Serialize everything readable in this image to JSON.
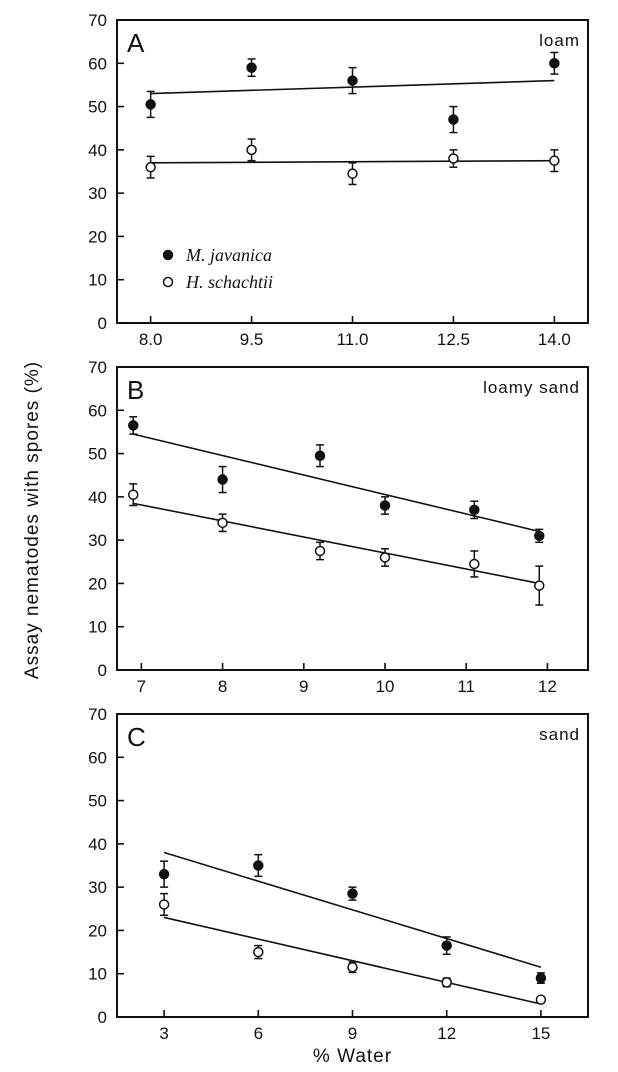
{
  "chart_data": {
    "type": "scatter",
    "ylabel": "Assay nematodes with spores (%)",
    "xlabel": "% Water",
    "legend": {
      "placement": "bottom-left of panel A",
      "entries": [
        {
          "name": "M. javanica",
          "marker": "filled-circle"
        },
        {
          "name": "H. schachtii",
          "marker": "open-circle"
        }
      ]
    },
    "panels": [
      {
        "letter": "A",
        "soil": "loam",
        "xlim": [
          7.5,
          14.5
        ],
        "ylim": [
          0,
          70
        ],
        "xticks": [
          8.0,
          9.5,
          11.0,
          12.5,
          14.0
        ],
        "xtick_labels": [
          "8.0",
          "9.5",
          "11.0",
          "12.5",
          "14.0"
        ],
        "yticks": [
          0,
          10,
          20,
          30,
          40,
          50,
          60,
          70
        ],
        "series": [
          {
            "name": "M. javanica",
            "filled": true,
            "x": [
              8.0,
              9.5,
              11.0,
              12.5,
              14.0
            ],
            "y": [
              50.5,
              59,
              56,
              47,
              60
            ],
            "err": [
              3,
              2,
              3,
              3,
              2.5
            ],
            "fit": [
              [
                8.0,
                53
              ],
              [
                14.0,
                56
              ]
            ]
          },
          {
            "name": "H. schachtii",
            "filled": false,
            "x": [
              8.0,
              9.5,
              11.0,
              12.5,
              14.0
            ],
            "y": [
              36,
              40,
              34.5,
              38,
              37.5
            ],
            "err": [
              2.5,
              2.5,
              2.5,
              2,
              2.5
            ],
            "fit": [
              [
                8.0,
                37
              ],
              [
                14.0,
                37.5
              ]
            ]
          }
        ]
      },
      {
        "letter": "B",
        "soil": "loamy sand",
        "xlim": [
          6.7,
          12.5
        ],
        "ylim": [
          0,
          70
        ],
        "xticks": [
          7,
          8,
          9,
          10,
          11,
          12
        ],
        "xtick_labels": [
          "7",
          "8",
          "9",
          "10",
          "11",
          "12"
        ],
        "yticks": [
          0,
          10,
          20,
          30,
          40,
          50,
          60,
          70
        ],
        "series": [
          {
            "name": "M. javanica",
            "filled": true,
            "x": [
              6.9,
              8.0,
              9.2,
              10.0,
              11.1,
              11.9
            ],
            "y": [
              56.5,
              44,
              49.5,
              38,
              37,
              31
            ],
            "err": [
              2,
              3,
              2.5,
              2,
              2,
              1.5
            ],
            "fit": [
              [
                6.9,
                54.5
              ],
              [
                11.9,
                32
              ]
            ]
          },
          {
            "name": "H. schachtii",
            "filled": false,
            "x": [
              6.9,
              8.0,
              9.2,
              10.0,
              11.1,
              11.9
            ],
            "y": [
              40.5,
              34,
              27.5,
              26,
              24.5,
              19.5
            ],
            "err": [
              2.5,
              2,
              2,
              2,
              3,
              4.5
            ],
            "fit": [
              [
                6.9,
                38.5
              ],
              [
                11.9,
                20
              ]
            ]
          }
        ]
      },
      {
        "letter": "C",
        "soil": "sand",
        "xlim": [
          1.5,
          16.5
        ],
        "ylim": [
          0,
          70
        ],
        "xticks": [
          3,
          6,
          9,
          12,
          15
        ],
        "xtick_labels": [
          "3",
          "6",
          "9",
          "12",
          "15"
        ],
        "yticks": [
          0,
          10,
          20,
          30,
          40,
          50,
          60,
          70
        ],
        "series": [
          {
            "name": "M. javanica",
            "filled": true,
            "x": [
              3,
              6,
              9,
              12,
              15
            ],
            "y": [
              33,
              35,
              28.5,
              16.5,
              9
            ],
            "err": [
              3,
              2.5,
              1.5,
              2,
              1.2
            ],
            "fit": [
              [
                3,
                38
              ],
              [
                15,
                11.5
              ]
            ]
          },
          {
            "name": "H. schachtii",
            "filled": false,
            "x": [
              3,
              6,
              9,
              12,
              15
            ],
            "y": [
              26,
              15,
              11.5,
              8,
              4
            ],
            "err": [
              2.5,
              1.5,
              1.2,
              1,
              0.5
            ],
            "fit": [
              [
                3,
                23
              ],
              [
                15,
                3
              ]
            ]
          }
        ]
      }
    ]
  }
}
